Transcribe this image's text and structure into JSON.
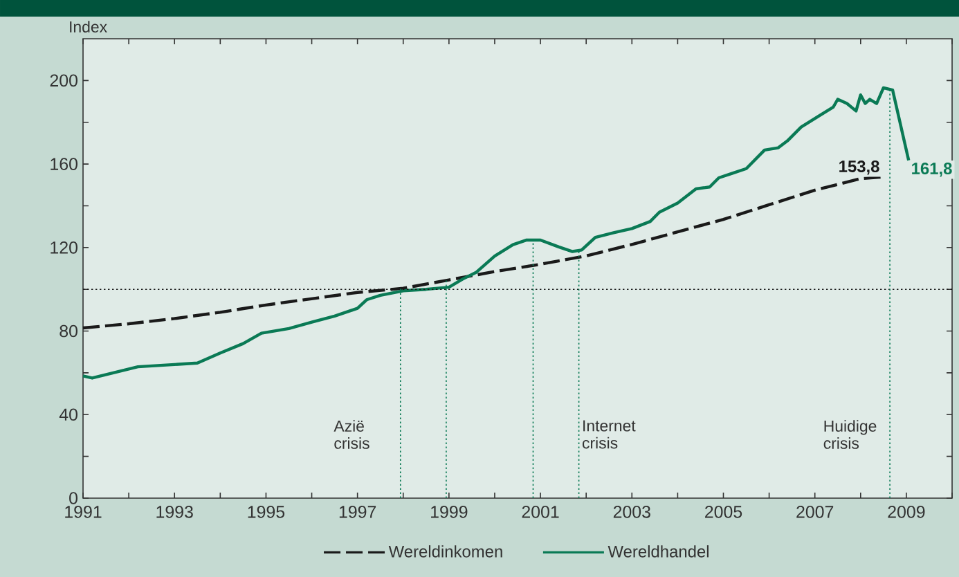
{
  "chart_data": {
    "type": "line",
    "ylabel": "Index",
    "xlim": [
      1991,
      2010
    ],
    "ylim": [
      0,
      220
    ],
    "xticks": [
      1991,
      {
        "value": 1992,
        "label": null
      },
      1993,
      {
        "value": 1994,
        "label": null
      },
      1995,
      {
        "value": 1996,
        "label": null
      },
      1997,
      {
        "value": 1998,
        "label": null
      },
      1999,
      {
        "value": 2000,
        "label": null
      },
      2001,
      {
        "value": 2002,
        "label": null
      },
      2003,
      {
        "value": 2004,
        "label": null
      },
      2005,
      {
        "value": 2006,
        "label": null
      },
      2007,
      {
        "value": 2008,
        "label": null
      },
      2009,
      {
        "value": 2010,
        "label": null
      }
    ],
    "yticks": [
      0,
      {
        "value": 20,
        "label": null
      },
      40,
      {
        "value": 60,
        "label": null
      },
      80,
      {
        "value": 100,
        "label": null
      },
      120,
      {
        "value": 140,
        "label": null
      },
      160,
      {
        "value": 180,
        "label": null
      },
      200
    ],
    "grid": false,
    "legend": "bottom",
    "series": [
      {
        "name": "Wereldinkomen",
        "color": "#1a1a1a",
        "line_style": "dashed",
        "x": [
          1991,
          1992,
          1993,
          1994,
          1995,
          1996,
          1997,
          1998,
          1999,
          2000,
          2001,
          2002,
          2003,
          2004,
          2005,
          2006,
          2007,
          2008,
          2008.47
        ],
        "values": [
          81.5,
          83.5,
          86,
          89,
          92.5,
          95.5,
          98.5,
          100.5,
          104.5,
          108.5,
          112,
          116,
          121.5,
          127.5,
          133.5,
          140.5,
          147.5,
          153,
          153.8
        ]
      },
      {
        "name": "Wereldhandel",
        "color": "#0a7a55",
        "line_style": "solid",
        "x": [
          1991,
          1991.2,
          1992,
          1992.2,
          1993,
          1993.5,
          1994,
          1994.5,
          1994.9,
          1995.5,
          1996,
          1996.5,
          1997,
          1997.2,
          1997.5,
          1998,
          1998.5,
          1999,
          1999.3,
          1999.6,
          2000.0,
          2000.4,
          2000.7,
          2001.0,
          2001.4,
          2001.7,
          2001.9,
          2002.2,
          2002.6,
          2003.0,
          2003.4,
          2003.6,
          2004.0,
          2004.4,
          2004.7,
          2004.9,
          2005.2,
          2005.5,
          2005.9,
          2006.2,
          2006.4,
          2006.7,
          2007.1,
          2007.4,
          2007.5,
          2007.7,
          2007.9,
          2008.0,
          2008.1,
          2008.2,
          2008.35,
          2008.5,
          2008.7,
          2009.05
        ],
        "values": [
          58.5,
          57.5,
          61.8,
          62.9,
          64,
          64.7,
          69.5,
          74,
          79,
          81.2,
          84.3,
          87.2,
          90.9,
          95,
          97.1,
          99.3,
          100,
          101,
          104.9,
          108.2,
          115.9,
          121.4,
          123.6,
          123.6,
          120.3,
          118.1,
          118.8,
          124.9,
          127.1,
          129.1,
          132.5,
          136.9,
          141.3,
          148.1,
          149,
          153.4,
          155.6,
          157.8,
          166.7,
          167.8,
          171.1,
          177.7,
          183.2,
          187.2,
          191,
          189,
          185.4,
          193.1,
          189,
          191,
          189,
          196.5,
          195.4,
          161.8
        ]
      }
    ],
    "ref_lines": [
      {
        "axis": "y",
        "value": 100,
        "color": "#1a1a1a",
        "line_style": "dotted"
      },
      {
        "axis": "x",
        "value": 1997.94,
        "color": "#0a7a55",
        "line_style": "dotted",
        "label": "Azië crisis"
      },
      {
        "axis": "x",
        "value": 1998.94,
        "color": "#0a7a55",
        "line_style": "dotted"
      },
      {
        "axis": "x",
        "value": 2000.84,
        "color": "#0a7a55",
        "line_style": "dotted"
      },
      {
        "axis": "x",
        "value": 2001.84,
        "color": "#0a7a55",
        "line_style": "dotted",
        "label": "Internet crisis"
      },
      {
        "axis": "x",
        "value": 2008.64,
        "color": "#0a7a55",
        "line_style": "dotted",
        "label": "Huidige crisis"
      }
    ],
    "annotations": [
      {
        "text": "153,8",
        "x": 2008.47,
        "y": 153.8
      },
      {
        "text": "161,8",
        "x": 2009.05,
        "y": 161.8
      }
    ]
  }
}
